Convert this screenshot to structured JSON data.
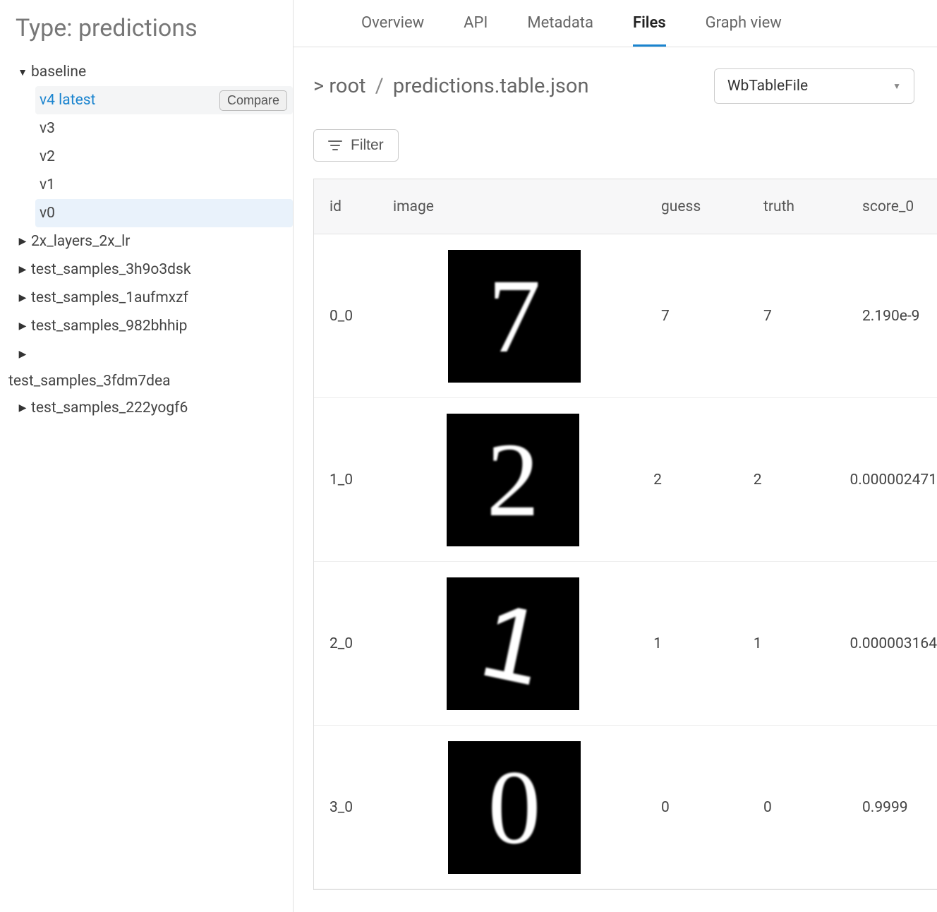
{
  "sidebar": {
    "title": "Type: predictions",
    "tree": [
      {
        "label": "baseline",
        "expanded": true,
        "versions": [
          {
            "label": "v4 latest",
            "active": true,
            "compare": "Compare"
          },
          {
            "label": "v3"
          },
          {
            "label": "v2"
          },
          {
            "label": "v1"
          },
          {
            "label": "v0",
            "highlighted": true
          }
        ]
      },
      {
        "label": "2x_layers_2x_lr",
        "expanded": false
      },
      {
        "label": "test_samples_3h9o3dsk",
        "expanded": false
      },
      {
        "label": "test_samples_1aufmxzf",
        "expanded": false
      },
      {
        "label": "test_samples_982bhhip",
        "expanded": false
      },
      {
        "label": "",
        "expanded": false,
        "orphan_below": "test_samples_3fdm7dea"
      },
      {
        "label": "test_samples_222yogf6",
        "expanded": false
      }
    ]
  },
  "tabs": {
    "items": [
      "Overview",
      "API",
      "Metadata",
      "Files",
      "Graph view"
    ],
    "active": "Files"
  },
  "breadcrumb": {
    "prefix": ">",
    "root": "root",
    "file": "predictions.table.json"
  },
  "viewer_select": {
    "value": "WbTableFile"
  },
  "toolbar": {
    "filter_label": "Filter"
  },
  "table": {
    "columns": [
      "id",
      "image",
      "guess",
      "truth",
      "score_0"
    ],
    "rows": [
      {
        "id": "0_0",
        "digit": "7",
        "guess": "7",
        "truth": "7",
        "score_0": "2.190e-9"
      },
      {
        "id": "1_0",
        "digit": "2",
        "guess": "2",
        "truth": "2",
        "score_0": "0.000002471"
      },
      {
        "id": "2_0",
        "digit": "1",
        "guess": "1",
        "truth": "1",
        "score_0": "0.000003164"
      },
      {
        "id": "3_0",
        "digit": "0",
        "guess": "0",
        "truth": "0",
        "score_0": "0.9999"
      }
    ]
  },
  "colors": {
    "accent": "#1a84cf",
    "text_muted": "#777",
    "border": "#e0e0e0",
    "row_highlight": "#e9f2fb",
    "row_active": "#f4f5f6"
  }
}
